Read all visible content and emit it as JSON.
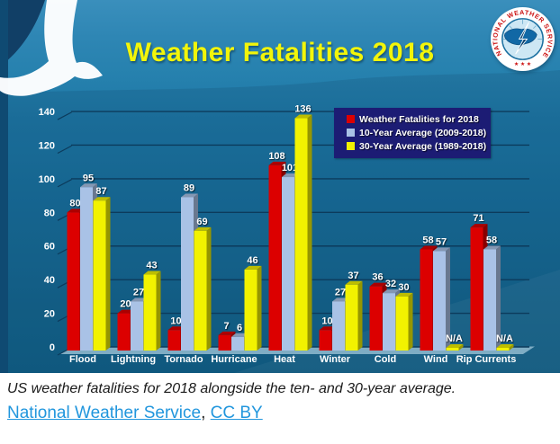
{
  "chart": {
    "title": "Weather Fatalities 2018",
    "title_color": "#f2f50a",
    "legend_bg": "#1c1c74",
    "logo": {
      "ring_text": "NATIONAL WEATHER SERVICE",
      "stars_text": "★ ★ ★"
    }
  },
  "chart_data": {
    "type": "bar",
    "title": "Weather Fatalities 2018",
    "categories": [
      "Flood",
      "Lightning",
      "Tornado",
      "Hurricane",
      "Heat",
      "Winter",
      "Cold",
      "Wind",
      "Rip Currents"
    ],
    "series": [
      {
        "name": "Weather Fatalities for 2018",
        "color": "#dc0000",
        "values": [
          80,
          20,
          10,
          7,
          108,
          10,
          36,
          58,
          71
        ]
      },
      {
        "name": "10-Year Average (2009-2018)",
        "color": "#a9c2e6",
        "values": [
          95,
          27,
          89,
          6,
          101,
          27,
          32,
          57,
          58
        ]
      },
      {
        "name": "30-Year Average (1989-2018)",
        "color": "#f2f200",
        "values": [
          87,
          43,
          69,
          46,
          136,
          37,
          30,
          null,
          null
        ]
      }
    ],
    "na_label": "N/A",
    "yticks": [
      0,
      20,
      40,
      60,
      80,
      100,
      120,
      140
    ],
    "ylim": [
      0,
      145
    ],
    "grid": true,
    "gridline_color": "#0c3b5c",
    "legend_position": "top-right"
  },
  "caption": {
    "text": "US weather fatalities for 2018 alongside the ten- and 30-year average."
  },
  "attribution": {
    "links": [
      {
        "text": "National Weather Service"
      },
      {
        "text": "CC BY"
      }
    ],
    "separator": ", "
  }
}
